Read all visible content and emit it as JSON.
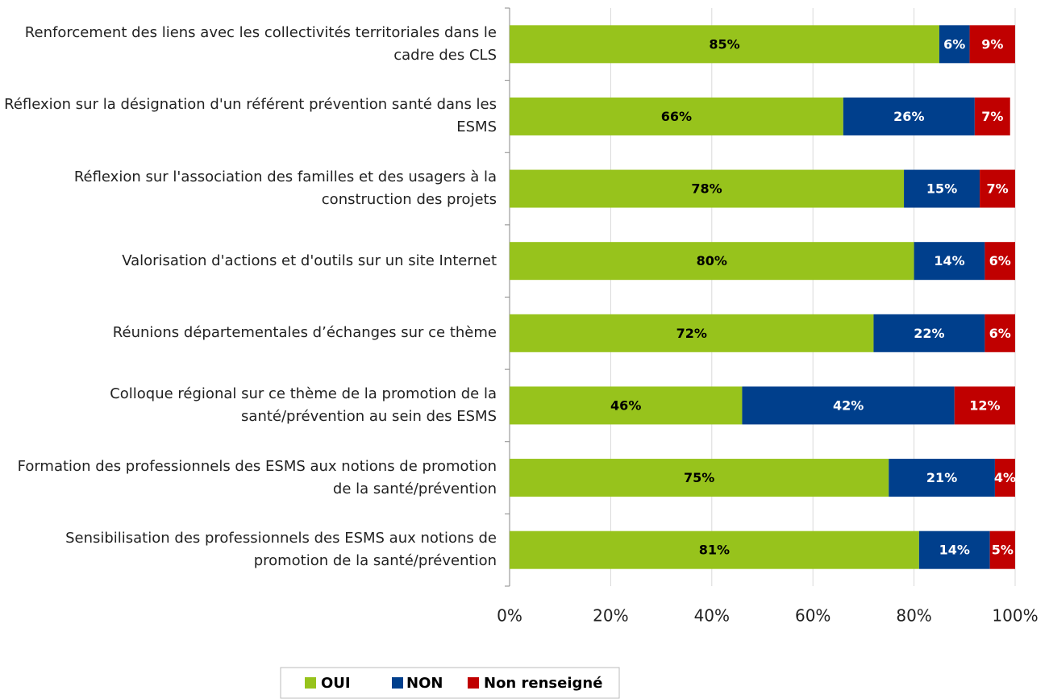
{
  "chart_data": {
    "type": "stacked-barh",
    "categories": [
      "Renforcement des liens avec les collectivités territoriales dans le cadre des CLS",
      "Réflexion sur la désignation d'un référent prévention santé dans les ESMS",
      "Réflexion sur l'association des familles et des usagers à la construction des projets",
      "Valorisation d'actions et d'outils sur un site Internet",
      "Réunions départementales d’échanges sur ce thème",
      "Colloque régional sur ce thème de la promotion de la santé/prévention au sein des ESMS",
      "Formation des professionnels des ESMS aux notions de promotion de la santé/prévention",
      "Sensibilisation des professionnels des ESMS aux notions de promotion de la santé/prévention"
    ],
    "series": [
      {
        "name": "OUI",
        "color": "#97c31c",
        "label_color": "#000000",
        "values": [
          85,
          66,
          78,
          80,
          72,
          46,
          75,
          81
        ],
        "value_labels": [
          "85%",
          "66%",
          "78%",
          "80%",
          "72%",
          "46%",
          "75%",
          "81%"
        ]
      },
      {
        "name": "NON",
        "color": "#003f8c",
        "label_color": "#ffffff",
        "values": [
          6,
          26,
          15,
          14,
          22,
          42,
          21,
          14
        ],
        "value_labels": [
          "6%",
          "26%",
          "15%",
          "14%",
          "22%",
          "42%",
          "21%",
          "14%"
        ]
      },
      {
        "name": "Non renseigné",
        "color": "#c00000",
        "label_color": "#ffffff",
        "values": [
          9,
          7,
          7,
          6,
          6,
          12,
          4,
          5
        ],
        "value_labels": [
          "9%",
          "7%",
          "7%",
          "6%",
          "6%",
          "12%",
          "4%",
          "5%"
        ]
      }
    ],
    "xlim": [
      0,
      100
    ],
    "xticks": [
      {
        "value": 0,
        "label": "0%"
      },
      {
        "value": 20,
        "label": "20%"
      },
      {
        "value": 40,
        "label": "40%"
      },
      {
        "value": 60,
        "label": "60%"
      },
      {
        "value": 80,
        "label": "80%"
      },
      {
        "value": 100,
        "label": "100%"
      }
    ],
    "grid": true,
    "legend": "bottom"
  }
}
